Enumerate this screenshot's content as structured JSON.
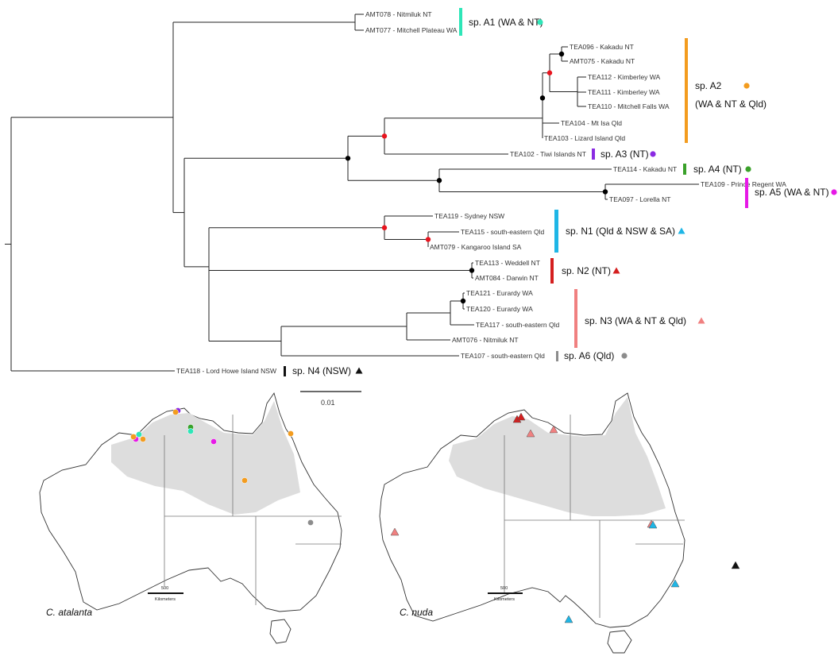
{
  "tree": {
    "tips": [
      {
        "id": "AMT078",
        "label": "AMT078 - Nitmiluk NT"
      },
      {
        "id": "AMT077",
        "label": "AMT077 - Mitchell Plateau WA"
      },
      {
        "id": "TEA096",
        "label": "TEA096 - Kakadu NT"
      },
      {
        "id": "AMT075",
        "label": "AMT075 - Kakadu NT"
      },
      {
        "id": "TEA112",
        "label": "TEA112 - Kimberley WA"
      },
      {
        "id": "TEA111",
        "label": "TEA111 - Kimberley WA"
      },
      {
        "id": "TEA110",
        "label": "TEA110 - Mitchell Falls WA"
      },
      {
        "id": "TEA104",
        "label": "TEA104 - Mt Isa Qld"
      },
      {
        "id": "TEA103",
        "label": "TEA103 - Lizard Island Qld"
      },
      {
        "id": "TEA102",
        "label": "TEA102 - Tiwi Islands NT"
      },
      {
        "id": "TEA114",
        "label": "TEA114 - Kakadu NT"
      },
      {
        "id": "TEA109",
        "label": "TEA109 - Prince Regent WA"
      },
      {
        "id": "TEA097",
        "label": "TEA097 - Lorella NT"
      },
      {
        "id": "TEA119",
        "label": "TEA119 - Sydney NSW"
      },
      {
        "id": "TEA115",
        "label": "TEA115 - south-eastern Qld"
      },
      {
        "id": "AMT079",
        "label": "AMT079 - Kangaroo Island SA"
      },
      {
        "id": "TEA113",
        "label": "TEA113 - Weddell NT"
      },
      {
        "id": "AMT084",
        "label": "AMT084 - Darwin NT"
      },
      {
        "id": "TEA121",
        "label": "TEA121 - Eurardy WA"
      },
      {
        "id": "TEA120",
        "label": "TEA120 - Eurardy WA"
      },
      {
        "id": "TEA117",
        "label": "TEA117 - south-eastern Qld"
      },
      {
        "id": "AMT076",
        "label": "AMT076 - Nitmiluk NT"
      },
      {
        "id": "TEA107",
        "label": "TEA107 - south-eastern Qld"
      },
      {
        "id": "TEA118",
        "label": "TEA118 - Lord Howe Island NSW"
      }
    ],
    "clades": [
      {
        "id": "A1",
        "label": "sp. A1 (WA & NT)",
        "color": "#2ee6b8",
        "marker": "circle"
      },
      {
        "id": "A2",
        "label": "sp. A2",
        "label2": "(WA & NT & Qld)",
        "color": "#f39c1f",
        "marker": "circle"
      },
      {
        "id": "A3",
        "label": "sp. A3 (NT)",
        "color": "#8a2be2",
        "marker": "circle"
      },
      {
        "id": "A4",
        "label": "sp. A4 (NT)",
        "color": "#3aa12a",
        "marker": "circle"
      },
      {
        "id": "A5",
        "label": "sp. A5 (WA & NT)",
        "color": "#e619e6",
        "marker": "circle"
      },
      {
        "id": "N1",
        "label": "sp. N1 (Qld & NSW & SA)",
        "color": "#1fb6e6",
        "marker": "triangle"
      },
      {
        "id": "N2",
        "label": "sp. N2  (NT)",
        "color": "#d41f1f",
        "marker": "triangle"
      },
      {
        "id": "N3",
        "label": "sp. N3  (WA & NT & Qld)",
        "color": "#f08080",
        "marker": "triangle"
      },
      {
        "id": "A6",
        "label": "sp. A6 (Qld)",
        "color": "#8c8c8c",
        "marker": "circle"
      },
      {
        "id": "N4",
        "label": "sp. N4 (NSW)",
        "color": "#111111",
        "marker": "triangle"
      }
    ],
    "scale_label": "0.01",
    "node_colors": {
      "supported": "#000000",
      "highlight": "#e8141e"
    }
  },
  "maps": {
    "left": {
      "species": "C. atalanta",
      "scale_value": "500",
      "scale_unit": "Kilometers"
    },
    "right": {
      "species": "C. nuda",
      "scale_value": "500",
      "scale_unit": "Kilometers"
    },
    "range_color": "#dddddd"
  }
}
